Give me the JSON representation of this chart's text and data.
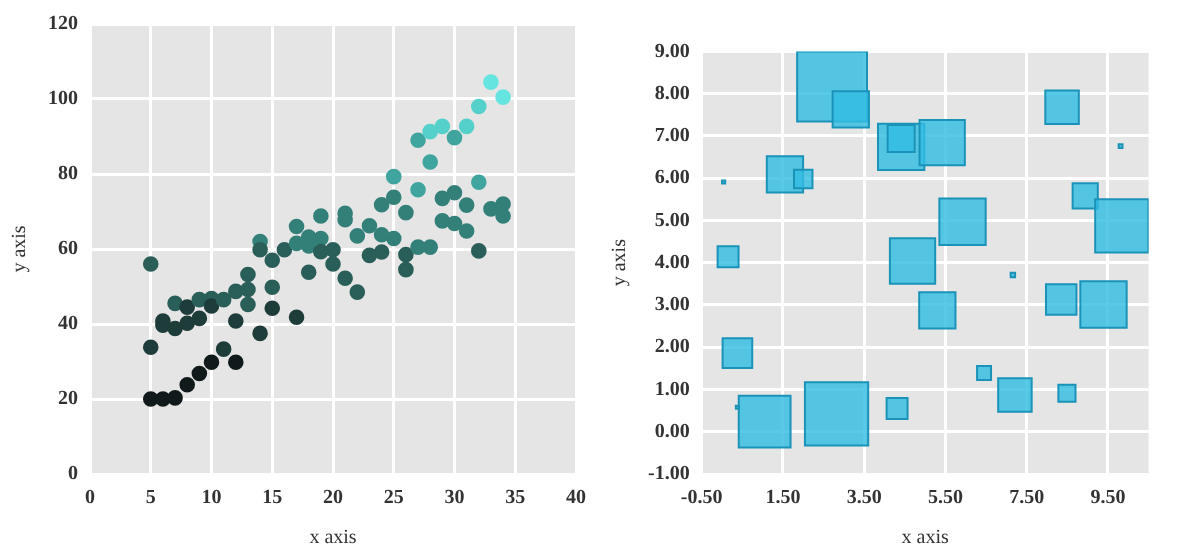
{
  "chart_data": [
    {
      "type": "scatter",
      "xlabel": "x axis",
      "ylabel": "y axis",
      "marker": "circle",
      "grid": true,
      "legend": false,
      "x": [
        5,
        5,
        5,
        6,
        7,
        6,
        6,
        7,
        7,
        8,
        8,
        8,
        9,
        9,
        9,
        10,
        10,
        10,
        11,
        11,
        12,
        12,
        12,
        13,
        13,
        13,
        14,
        14,
        14,
        15,
        15,
        15,
        16,
        17,
        17,
        17,
        18,
        18,
        18,
        19,
        19,
        19,
        20,
        20,
        21,
        21,
        21,
        22,
        22,
        23,
        23,
        24,
        24,
        24,
        25,
        25,
        25,
        26,
        26,
        26,
        27,
        27,
        27,
        28,
        28,
        28,
        29,
        29,
        29,
        30,
        30,
        30,
        31,
        31,
        31,
        32,
        32,
        32,
        33,
        33,
        34,
        34,
        34
      ],
      "values": [
        56,
        33.8,
        20,
        20,
        20.3,
        40.8,
        39.7,
        45.5,
        38.8,
        44.5,
        40.2,
        23.8,
        46.5,
        41.5,
        26.8,
        46.8,
        44.8,
        29.8,
        46.5,
        33.3,
        48.7,
        40.8,
        29.8,
        53.2,
        49.2,
        45.2,
        62,
        59.8,
        37.5,
        57,
        49.8,
        44.2,
        59.8,
        66,
        61.5,
        41.8,
        63.2,
        60.8,
        53.8,
        68.8,
        62.8,
        59.3,
        59.8,
        56,
        69.5,
        67.8,
        52.2,
        63.5,
        48.5,
        66.2,
        58.3,
        71.8,
        63.8,
        59.2,
        79.3,
        73.8,
        62.8,
        69.7,
        58.5,
        54.5,
        89,
        75.8,
        60.5,
        91.3,
        83.2,
        60.5,
        92.7,
        73.5,
        67.5,
        89.7,
        75,
        66.8,
        92.7,
        71.7,
        64.8,
        98,
        77.8,
        59.5,
        104.5,
        70.7,
        100.5,
        72,
        68.8
      ],
      "colors": [
        "#2a5e58",
        "#1e3c3a",
        "#111a1a",
        "#111a1a",
        "#111a1a",
        "#1e3c3a",
        "#1e3c3a",
        "#2a5e58",
        "#1e3c3a",
        "#1e3c3a",
        "#1e3c3a",
        "#111a1a",
        "#2a5e58",
        "#1e3c3a",
        "#111a1a",
        "#2a5e58",
        "#1e3c3a",
        "#111a1a",
        "#2a5e58",
        "#1e3c3a",
        "#2a5e58",
        "#1e3c3a",
        "#111a1a",
        "#2a5e58",
        "#2a5e58",
        "#2a5e58",
        "#338079",
        "#2a5e58",
        "#1e3c3a",
        "#2a5e58",
        "#2a5e58",
        "#1e3c3a",
        "#2a5e58",
        "#338079",
        "#338079",
        "#1e3c3a",
        "#338079",
        "#338079",
        "#2a5e58",
        "#338079",
        "#338079",
        "#2a5e58",
        "#2a5e58",
        "#2a5e58",
        "#338079",
        "#338079",
        "#2a5e58",
        "#338079",
        "#2a5e58",
        "#338079",
        "#2a5e58",
        "#338079",
        "#338079",
        "#2a5e58",
        "#3fa59e",
        "#338079",
        "#338079",
        "#338079",
        "#2a5e58",
        "#2a5e58",
        "#3fa59e",
        "#3fa59e",
        "#338079",
        "#55d0ca",
        "#3fa59e",
        "#338079",
        "#55d0ca",
        "#338079",
        "#338079",
        "#3fa59e",
        "#338079",
        "#338079",
        "#55d0ca",
        "#338079",
        "#338079",
        "#55d0ca",
        "#3fa59e",
        "#2a5e58",
        "#66e4e0",
        "#338079",
        "#66e4e0",
        "#338079",
        "#338079"
      ],
      "xlim": [
        0,
        40
      ],
      "xticks": [
        0,
        5,
        10,
        15,
        20,
        25,
        30,
        35,
        40
      ],
      "ylim": [
        0,
        120
      ],
      "yticks": [
        0,
        20,
        40,
        60,
        80,
        100,
        120
      ]
    },
    {
      "type": "bubble",
      "xlabel": "x axis",
      "ylabel": "y axis",
      "marker": "square",
      "grid": true,
      "legend": false,
      "color": "#33bde3",
      "x": [
        2.71,
        3.17,
        4.41,
        4.41,
        5.42,
        8.37,
        9.81,
        1.55,
        2.0,
        0.04,
        5.92,
        8.94,
        9.84,
        0.15,
        4.69,
        7.16,
        5.3,
        8.35,
        9.39,
        0.38,
        6.45,
        7.21,
        8.49,
        4.31,
        1.05,
        0.38,
        2.82
      ],
      "values": [
        8.17,
        7.63,
        6.74,
        6.94,
        6.84,
        7.68,
        6.76,
        6.09,
        5.98,
        5.91,
        4.97,
        5.58,
        4.87,
        4.14,
        4.04,
        3.71,
        2.87,
        3.13,
        3.01,
        1.86,
        1.39,
        0.87,
        0.91,
        0.55,
        0.24,
        0.58,
        0.42
      ],
      "sizes": [
        1,
        0.27,
        0.44,
        0.15,
        0.42,
        0.23,
        0.003,
        0.27,
        0.07,
        0.002,
        0.44,
        0.13,
        0.58,
        0.09,
        0.42,
        0.004,
        0.27,
        0.19,
        0.44,
        0.18,
        0.04,
        0.23,
        0.06,
        0.09,
        0.55,
        0.002,
        0.82
      ],
      "xlim": [
        -0.5,
        10.5
      ],
      "xticks": [
        {
          "value": -0.5,
          "label": "-0.50"
        },
        {
          "value": 1.5,
          "label": "1.50"
        },
        {
          "value": 3.5,
          "label": "3.50"
        },
        {
          "value": 5.5,
          "label": "5.50"
        },
        {
          "value": 7.5,
          "label": "7.50"
        },
        {
          "value": 9.5,
          "label": "9.50"
        }
      ],
      "ylim": [
        -1,
        9
      ],
      "yticks": [
        {
          "value": -1,
          "label": "-1.00"
        },
        {
          "value": 0,
          "label": "0.00"
        },
        {
          "value": 1,
          "label": "1.00"
        },
        {
          "value": 2,
          "label": "2.00"
        },
        {
          "value": 3,
          "label": "3.00"
        },
        {
          "value": 4,
          "label": "4.00"
        },
        {
          "value": 5,
          "label": "5.00"
        },
        {
          "value": 6,
          "label": "6.00"
        },
        {
          "value": 7,
          "label": "7.00"
        },
        {
          "value": 8,
          "label": "8.00"
        },
        {
          "value": 9,
          "label": "9.00"
        }
      ]
    }
  ]
}
